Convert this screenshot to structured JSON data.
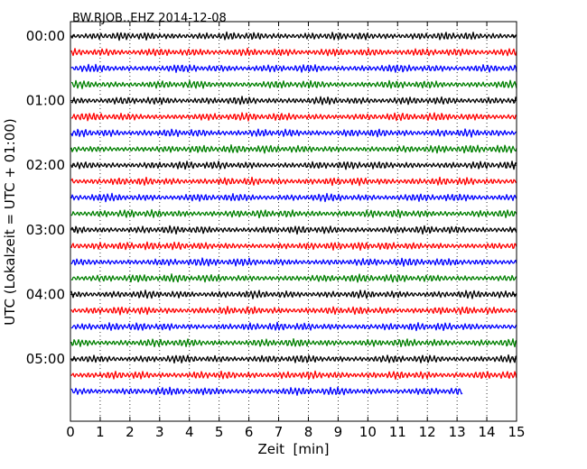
{
  "chart_data": {
    "type": "line",
    "subtype": "dayplot",
    "title": "BW.RJOB..EHZ 2014-12-08",
    "xlabel": "Zeit  [min]",
    "ylabel": "UTC (Lokalzeit = UTC + 01:00)",
    "xlim": [
      0,
      15
    ],
    "x_ticks": [
      0,
      1,
      2,
      3,
      4,
      5,
      6,
      7,
      8,
      9,
      10,
      11,
      12,
      13,
      14,
      15
    ],
    "x_tick_labels": [
      "0",
      "1",
      "2",
      "3",
      "4",
      "5",
      "6",
      "7",
      "8",
      "9",
      "10",
      "11",
      "12",
      "13",
      "14",
      "15"
    ],
    "y_tick_labels": [
      "00:00",
      "01:00",
      "02:00",
      "03:00",
      "04:00",
      "05:00"
    ],
    "vertical_grid": "dotted",
    "trace_colors": [
      "#000000",
      "#ff0000",
      "#0000ff",
      "#008000"
    ],
    "trace_count": 23,
    "last_trace_end_min": 13.2
  }
}
